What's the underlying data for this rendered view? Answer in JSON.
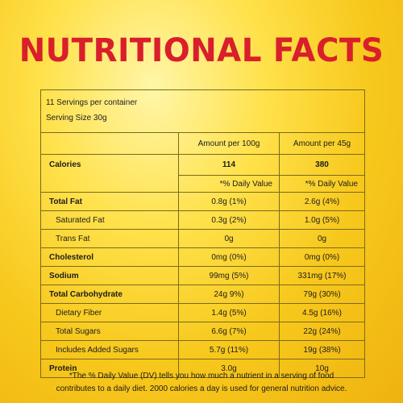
{
  "title": "NUTRITIONAL FACTS",
  "servings_per_container": "11 Servings per container",
  "serving_size": "Serving Size 30g",
  "columns": [
    "Amount per 100g",
    "Amount per 45g"
  ],
  "calories": {
    "label": "Calories",
    "per_100g": "114",
    "per_45g": "380"
  },
  "daily_value_header": [
    "*% Daily Value",
    "*% Daily Value"
  ],
  "rows": [
    {
      "label": "Total Fat",
      "per_100g": "0.8g (1%)",
      "per_45g": "2.6g (4%)",
      "bold": true,
      "indent": false
    },
    {
      "label": "Saturated Fat",
      "per_100g": "0.3g (2%)",
      "per_45g": "1.0g (5%)",
      "bold": false,
      "indent": true
    },
    {
      "label": "Trans Fat",
      "per_100g": "0g",
      "per_45g": "0g",
      "bold": false,
      "indent": true
    },
    {
      "label": "Cholesterol",
      "per_100g": "0mg (0%)",
      "per_45g": "0mg (0%)",
      "bold": true,
      "indent": false
    },
    {
      "label": "Sodium",
      "per_100g": "99mg (5%)",
      "per_45g": "331mg (17%)",
      "bold": true,
      "indent": false
    },
    {
      "label": "Total Carbohydrate",
      "per_100g": "24g 9%)",
      "per_45g": "79g (30%)",
      "bold": true,
      "indent": false
    },
    {
      "label": "Dietary Fiber",
      "per_100g": "1.4g (5%)",
      "per_45g": "4.5g (16%)",
      "bold": false,
      "indent": true
    },
    {
      "label": "Total Sugars",
      "per_100g": "6.6g (7%)",
      "per_45g": "22g (24%)",
      "bold": false,
      "indent": true
    },
    {
      "label": "Includes Added Sugars",
      "per_100g": "5.7g (11%)",
      "per_45g": "19g (38%)",
      "bold": false,
      "indent": true
    },
    {
      "label": "Protein",
      "per_100g": "3.0g",
      "per_45g": "10g",
      "bold": true,
      "indent": false
    }
  ],
  "footnote": [
    "*The % Daily Value (DV) tells you how much a nutrient in a serving of food",
    "contributes to a daily diet. 2000 calories a day is used for general nutrition advice."
  ]
}
